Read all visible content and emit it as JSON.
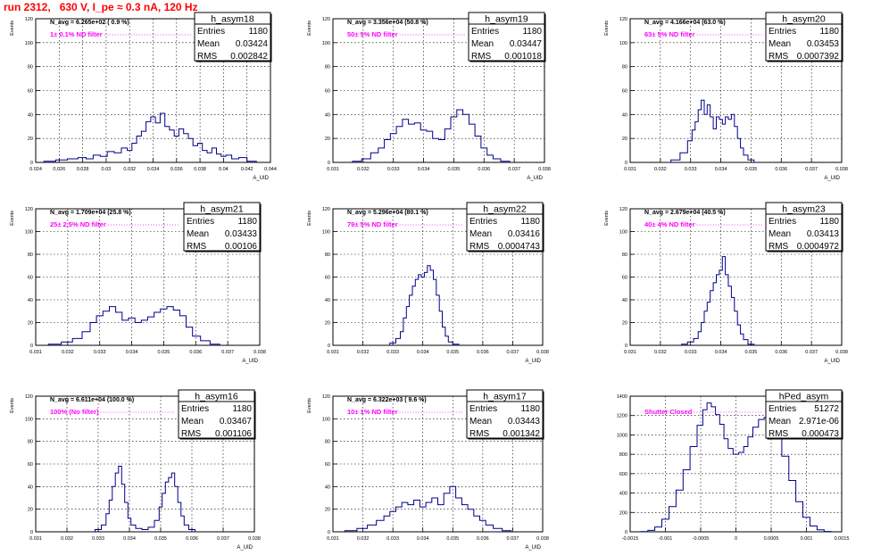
{
  "run_title": "run 2312,   630 V, I_pe ≈ 0.3 nA, 120 Hz",
  "chart_data": [
    {
      "type": "bar",
      "hist": "h_asym18",
      "stats": {
        "Entries": "1180",
        "Mean": "0.03424",
        "RMS": "0.002842"
      },
      "n_avg": "N_avg = 6.265e+02 ( 0.9 %)",
      "filter": "1± 0.1% ND filter",
      "ylabel": "Events",
      "xlabel": "A_UID",
      "ylim": [
        0,
        120
      ],
      "yticks": [
        0,
        20,
        40,
        60,
        80,
        100,
        120
      ],
      "xlim": [
        0.024,
        0.044
      ],
      "xticks": [
        "0.024",
        "0.026",
        "0.028",
        "0.03",
        "0.032",
        "0.034",
        "0.036",
        "0.038",
        "0.04",
        "0.042",
        "0.044"
      ],
      "bins": [
        [
          0.0252,
          1
        ],
        [
          0.0262,
          2
        ],
        [
          0.0272,
          3
        ],
        [
          0.028,
          4
        ],
        [
          0.0286,
          3
        ],
        [
          0.0292,
          6
        ],
        [
          0.0298,
          5
        ],
        [
          0.0304,
          9
        ],
        [
          0.031,
          8
        ],
        [
          0.0316,
          12
        ],
        [
          0.032,
          10
        ],
        [
          0.0324,
          16
        ],
        [
          0.0328,
          22
        ],
        [
          0.0332,
          26
        ],
        [
          0.0336,
          34
        ],
        [
          0.034,
          38
        ],
        [
          0.0344,
          33
        ],
        [
          0.0348,
          41
        ],
        [
          0.0352,
          30
        ],
        [
          0.0356,
          27
        ],
        [
          0.036,
          22
        ],
        [
          0.0364,
          28
        ],
        [
          0.0368,
          24
        ],
        [
          0.0372,
          20
        ],
        [
          0.0376,
          14
        ],
        [
          0.038,
          16
        ],
        [
          0.0384,
          10
        ],
        [
          0.0388,
          8
        ],
        [
          0.0392,
          12
        ],
        [
          0.0396,
          7
        ],
        [
          0.04,
          5
        ],
        [
          0.0404,
          6
        ],
        [
          0.041,
          3
        ],
        [
          0.0416,
          4
        ],
        [
          0.0424,
          1
        ]
      ]
    },
    {
      "type": "bar",
      "hist": "h_asym19",
      "stats": {
        "Entries": "1180",
        "Mean": "0.03447",
        "RMS": "0.001018"
      },
      "n_avg": "N_avg = 3.356e+04 (50.8 %)",
      "filter": "50± 5% ND filter",
      "ylabel": "Events",
      "xlabel": "A_UID",
      "ylim": [
        0,
        120
      ],
      "yticks": [
        0,
        20,
        40,
        60,
        80,
        100,
        120
      ],
      "xlim": [
        0.031,
        0.038
      ],
      "xticks": [
        "0.031",
        "0.032",
        "0.033",
        "0.034",
        "0.035",
        "0.036",
        "0.037",
        "0.038"
      ],
      "bins": [
        [
          0.0318,
          1
        ],
        [
          0.0321,
          3
        ],
        [
          0.0324,
          8
        ],
        [
          0.0326,
          12
        ],
        [
          0.0328,
          19
        ],
        [
          0.033,
          24
        ],
        [
          0.0332,
          30
        ],
        [
          0.0334,
          36
        ],
        [
          0.0336,
          32
        ],
        [
          0.0338,
          33
        ],
        [
          0.034,
          27
        ],
        [
          0.0342,
          26
        ],
        [
          0.0344,
          20
        ],
        [
          0.0346,
          19
        ],
        [
          0.0348,
          28
        ],
        [
          0.035,
          38
        ],
        [
          0.0352,
          44
        ],
        [
          0.0354,
          40
        ],
        [
          0.0356,
          32
        ],
        [
          0.0358,
          22
        ],
        [
          0.036,
          12
        ],
        [
          0.0362,
          6
        ],
        [
          0.0364,
          3
        ],
        [
          0.0367,
          1
        ]
      ]
    },
    {
      "type": "bar",
      "hist": "h_asym20",
      "stats": {
        "Entries": "1180",
        "Mean": "0.03453",
        "RMS": "0.0007392"
      },
      "n_avg": "N_avg = 4.166e+04 (63.0 %)",
      "filter": "63± 5% ND filter",
      "ylabel": "Events",
      "xlabel": "A_UID",
      "ylim": [
        0,
        120
      ],
      "yticks": [
        0,
        20,
        40,
        60,
        80,
        100,
        120
      ],
      "xlim": [
        0.031,
        0.038
      ],
      "xticks": [
        "0.031",
        "0.032",
        "0.033",
        "0.034",
        "0.035",
        "0.036",
        "0.037",
        "0.038"
      ],
      "bins": [
        [
          0.0325,
          2
        ],
        [
          0.0328,
          8
        ],
        [
          0.033,
          18
        ],
        [
          0.0331,
          27
        ],
        [
          0.0332,
          34
        ],
        [
          0.0333,
          44
        ],
        [
          0.0334,
          52
        ],
        [
          0.0335,
          40
        ],
        [
          0.0336,
          48
        ],
        [
          0.0337,
          38
        ],
        [
          0.0338,
          28
        ],
        [
          0.0339,
          38
        ],
        [
          0.034,
          36
        ],
        [
          0.0341,
          32
        ],
        [
          0.0342,
          38
        ],
        [
          0.0343,
          36
        ],
        [
          0.0344,
          40
        ],
        [
          0.0345,
          30
        ],
        [
          0.0346,
          20
        ],
        [
          0.0347,
          12
        ],
        [
          0.0348,
          6
        ],
        [
          0.035,
          2
        ]
      ]
    },
    {
      "type": "bar",
      "hist": "h_asym21",
      "stats": {
        "Entries": "1180",
        "Mean": "0.03433",
        "RMS": "0.00106"
      },
      "n_avg": "N_avg = 1.709e+04 (25.8 %)",
      "filter": "25± 2.5% ND filter",
      "ylabel": "Events",
      "xlabel": "A_UID",
      "ylim": [
        0,
        120
      ],
      "yticks": [
        0,
        20,
        40,
        60,
        80,
        100,
        120
      ],
      "xlim": [
        0.031,
        0.038
      ],
      "xticks": [
        "0.031",
        "0.032",
        "0.033",
        "0.034",
        "0.035",
        "0.036",
        "0.037",
        "0.038"
      ],
      "bins": [
        [
          0.0316,
          1
        ],
        [
          0.032,
          3
        ],
        [
          0.0323,
          6
        ],
        [
          0.0326,
          12
        ],
        [
          0.0328,
          20
        ],
        [
          0.033,
          26
        ],
        [
          0.0332,
          30
        ],
        [
          0.0334,
          34
        ],
        [
          0.0336,
          29
        ],
        [
          0.0338,
          22
        ],
        [
          0.034,
          24
        ],
        [
          0.0342,
          20
        ],
        [
          0.0344,
          22
        ],
        [
          0.0346,
          25
        ],
        [
          0.0348,
          29
        ],
        [
          0.035,
          32
        ],
        [
          0.0352,
          34
        ],
        [
          0.0354,
          31
        ],
        [
          0.0356,
          26
        ],
        [
          0.0358,
          16
        ],
        [
          0.036,
          8
        ],
        [
          0.0363,
          4
        ],
        [
          0.0366,
          1
        ]
      ]
    },
    {
      "type": "bar",
      "hist": "h_asym22",
      "stats": {
        "Entries": "1180",
        "Mean": "0.03416",
        "RMS": "0.0004743"
      },
      "n_avg": "N_avg = 5.296e+04 (80.1 %)",
      "filter": "79± 5% ND filter",
      "ylabel": "Events",
      "xlabel": "A_UID",
      "ylim": [
        0,
        120
      ],
      "yticks": [
        0,
        20,
        40,
        60,
        80,
        100,
        120
      ],
      "xlim": [
        0.031,
        0.038
      ],
      "xticks": [
        "0.031",
        "0.032",
        "0.033",
        "0.034",
        "0.035",
        "0.036",
        "0.037",
        "0.038"
      ],
      "bins": [
        [
          0.033,
          2
        ],
        [
          0.0332,
          6
        ],
        [
          0.0333,
          12
        ],
        [
          0.0334,
          24
        ],
        [
          0.0335,
          34
        ],
        [
          0.0336,
          44
        ],
        [
          0.0337,
          52
        ],
        [
          0.0338,
          58
        ],
        [
          0.0339,
          62
        ],
        [
          0.034,
          60
        ],
        [
          0.0341,
          64
        ],
        [
          0.0342,
          70
        ],
        [
          0.0343,
          66
        ],
        [
          0.0344,
          58
        ],
        [
          0.0345,
          44
        ],
        [
          0.0346,
          30
        ],
        [
          0.0347,
          16
        ],
        [
          0.0348,
          8
        ],
        [
          0.0349,
          3
        ],
        [
          0.0351,
          1
        ]
      ]
    },
    {
      "type": "bar",
      "hist": "h_asym23",
      "stats": {
        "Entries": "1180",
        "Mean": "0.03413",
        "RMS": "0.0004972"
      },
      "n_avg": "N_avg = 2.679e+04 (40.5 %)",
      "filter": "40± 4% ND filter",
      "ylabel": "Events",
      "xlabel": "A_UID",
      "ylim": [
        0,
        120
      ],
      "yticks": [
        0,
        20,
        40,
        60,
        80,
        100,
        120
      ],
      "xlim": [
        0.031,
        0.038
      ],
      "xticks": [
        "0.031",
        "0.032",
        "0.033",
        "0.034",
        "0.035",
        "0.036",
        "0.037",
        "0.038"
      ],
      "bins": [
        [
          0.0328,
          1
        ],
        [
          0.033,
          3
        ],
        [
          0.0332,
          6
        ],
        [
          0.0333,
          12
        ],
        [
          0.0334,
          20
        ],
        [
          0.0335,
          30
        ],
        [
          0.0336,
          38
        ],
        [
          0.0337,
          48
        ],
        [
          0.0338,
          55
        ],
        [
          0.0339,
          62
        ],
        [
          0.034,
          66
        ],
        [
          0.0341,
          78
        ],
        [
          0.0342,
          62
        ],
        [
          0.0343,
          52
        ],
        [
          0.0344,
          42
        ],
        [
          0.0345,
          30
        ],
        [
          0.0346,
          18
        ],
        [
          0.0347,
          10
        ],
        [
          0.0348,
          5
        ],
        [
          0.035,
          1
        ]
      ]
    },
    {
      "type": "bar",
      "hist": "h_asym16",
      "stats": {
        "Entries": "1180",
        "Mean": "0.03467",
        "RMS": "0.001106"
      },
      "n_avg": "N_avg = 6.611e+04 (100.0 %)",
      "filter": "100% (No filter)",
      "ylabel": "Events",
      "xlabel": "A_UID",
      "ylim": [
        0,
        120
      ],
      "yticks": [
        0,
        20,
        40,
        60,
        80,
        100,
        120
      ],
      "xlim": [
        0.031,
        0.038
      ],
      "xticks": [
        "0.031",
        "0.032",
        "0.033",
        "0.034",
        "0.035",
        "0.036",
        "0.037",
        "0.038"
      ],
      "bins": [
        [
          0.033,
          2
        ],
        [
          0.0332,
          6
        ],
        [
          0.0333,
          16
        ],
        [
          0.0334,
          28
        ],
        [
          0.0335,
          40
        ],
        [
          0.0336,
          52
        ],
        [
          0.0337,
          58
        ],
        [
          0.0338,
          42
        ],
        [
          0.0339,
          26
        ],
        [
          0.034,
          12
        ],
        [
          0.0341,
          6
        ],
        [
          0.0343,
          3
        ],
        [
          0.0345,
          2
        ],
        [
          0.0347,
          4
        ],
        [
          0.0349,
          10
        ],
        [
          0.035,
          22
        ],
        [
          0.0351,
          34
        ],
        [
          0.0352,
          44
        ],
        [
          0.0353,
          48
        ],
        [
          0.0354,
          52
        ],
        [
          0.0355,
          40
        ],
        [
          0.0356,
          26
        ],
        [
          0.0357,
          14
        ],
        [
          0.0358,
          6
        ],
        [
          0.036,
          2
        ]
      ]
    },
    {
      "type": "bar",
      "hist": "h_asym17",
      "stats": {
        "Entries": "1180",
        "Mean": "0.03443",
        "RMS": "0.001342"
      },
      "n_avg": "N_avg = 6.322e+03 ( 9.6 %)",
      "filter": "10± 1% ND filter",
      "ylabel": "Events",
      "xlabel": "A_UID",
      "ylim": [
        0,
        120
      ],
      "yticks": [
        0,
        20,
        40,
        60,
        80,
        100,
        120
      ],
      "xlim": [
        0.031,
        0.038
      ],
      "xticks": [
        "0.031",
        "0.032",
        "0.033",
        "0.034",
        "0.035",
        "0.036",
        "0.037",
        "0.038"
      ],
      "bins": [
        [
          0.0316,
          1
        ],
        [
          0.032,
          3
        ],
        [
          0.0323,
          6
        ],
        [
          0.0326,
          10
        ],
        [
          0.0328,
          14
        ],
        [
          0.033,
          18
        ],
        [
          0.0332,
          22
        ],
        [
          0.0334,
          26
        ],
        [
          0.0336,
          24
        ],
        [
          0.0338,
          28
        ],
        [
          0.034,
          22
        ],
        [
          0.0342,
          26
        ],
        [
          0.0344,
          30
        ],
        [
          0.0346,
          24
        ],
        [
          0.0348,
          34
        ],
        [
          0.035,
          40
        ],
        [
          0.0352,
          30
        ],
        [
          0.0354,
          24
        ],
        [
          0.0356,
          20
        ],
        [
          0.0358,
          14
        ],
        [
          0.036,
          10
        ],
        [
          0.0362,
          6
        ],
        [
          0.0365,
          3
        ],
        [
          0.0368,
          1
        ]
      ]
    },
    {
      "type": "bar",
      "hist": "hPed_asym",
      "stats": {
        "Entries": "51272",
        "Mean": "2.971e-06",
        "RMS": "0.000473"
      },
      "n_avg": "",
      "filter": "Shutter Closed",
      "ylabel": "",
      "xlabel": "",
      "ylim": [
        0,
        1400
      ],
      "yticks": [
        0,
        200,
        400,
        600,
        800,
        1000,
        1200,
        1400
      ],
      "xlim": [
        -0.0015,
        0.0015
      ],
      "xticks": [
        "-0.0015",
        "-0.001",
        "-0.0005",
        "0",
        "0.0005",
        "0.001",
        "0.0015"
      ],
      "bins": [
        [
          -0.0013,
          2
        ],
        [
          -0.0012,
          15
        ],
        [
          -0.0011,
          50
        ],
        [
          -0.001,
          130
        ],
        [
          -0.0009,
          260
        ],
        [
          -0.0008,
          430
        ],
        [
          -0.0007,
          640
        ],
        [
          -0.0006,
          880
        ],
        [
          -0.0005,
          1100
        ],
        [
          -0.00044,
          1260
        ],
        [
          -0.00038,
          1330
        ],
        [
          -0.00032,
          1290
        ],
        [
          -0.00026,
          1210
        ],
        [
          -0.0002,
          1110
        ],
        [
          -0.00014,
          960
        ],
        [
          -8e-05,
          860
        ],
        [
          0.0,
          800
        ],
        [
          8e-05,
          820
        ],
        [
          0.00014,
          880
        ],
        [
          0.0002,
          980
        ],
        [
          0.00028,
          1080
        ],
        [
          0.00036,
          1160
        ],
        [
          0.00044,
          1180
        ],
        [
          0.00052,
          1130
        ],
        [
          0.0006,
          1010
        ],
        [
          0.0007,
          780
        ],
        [
          0.0008,
          530
        ],
        [
          0.0009,
          310
        ],
        [
          0.001,
          150
        ],
        [
          0.0011,
          60
        ],
        [
          0.0012,
          20
        ],
        [
          0.0013,
          4
        ]
      ]
    }
  ]
}
